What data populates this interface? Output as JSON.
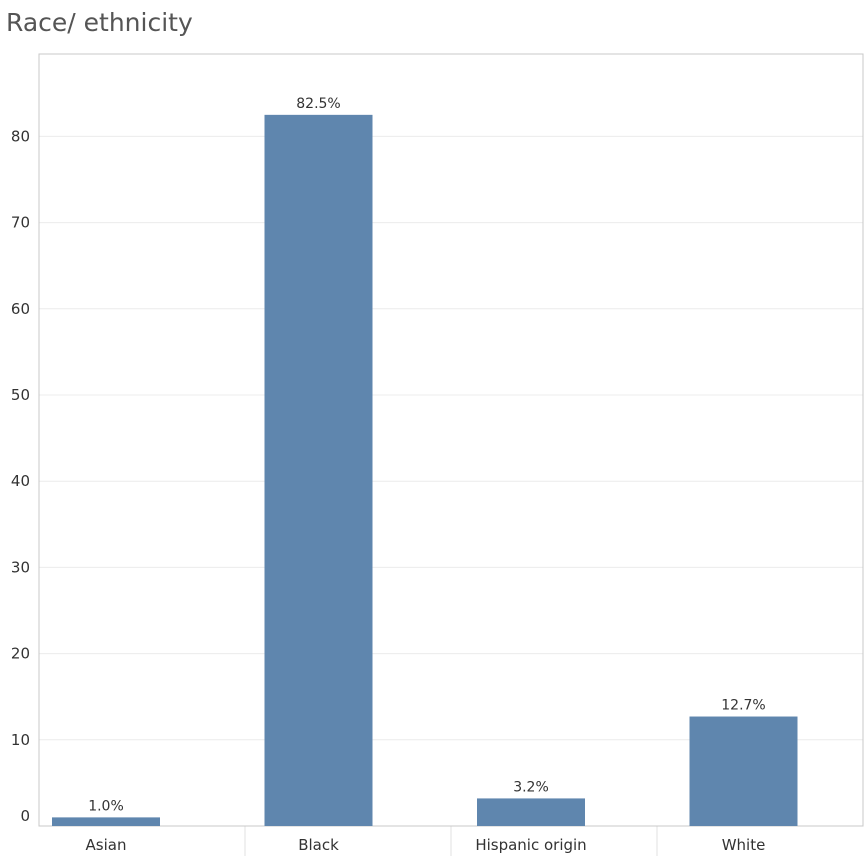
{
  "chart_data": {
    "type": "bar",
    "title": "Race/ ethnicity",
    "categories": [
      "Asian",
      "Black",
      "Hispanic origin",
      "White"
    ],
    "values": [
      1.0,
      82.5,
      3.2,
      12.7
    ],
    "data_labels": [
      "1.0%",
      "82.5%",
      "3.2%",
      "12.7%"
    ],
    "xlabel": "",
    "ylabel": "",
    "ylim": [
      0,
      90
    ],
    "yticks": [
      0,
      10,
      20,
      30,
      40,
      50,
      60,
      70,
      80
    ],
    "grid": true,
    "legend": "none",
    "bar_color": "#5f86ae"
  }
}
